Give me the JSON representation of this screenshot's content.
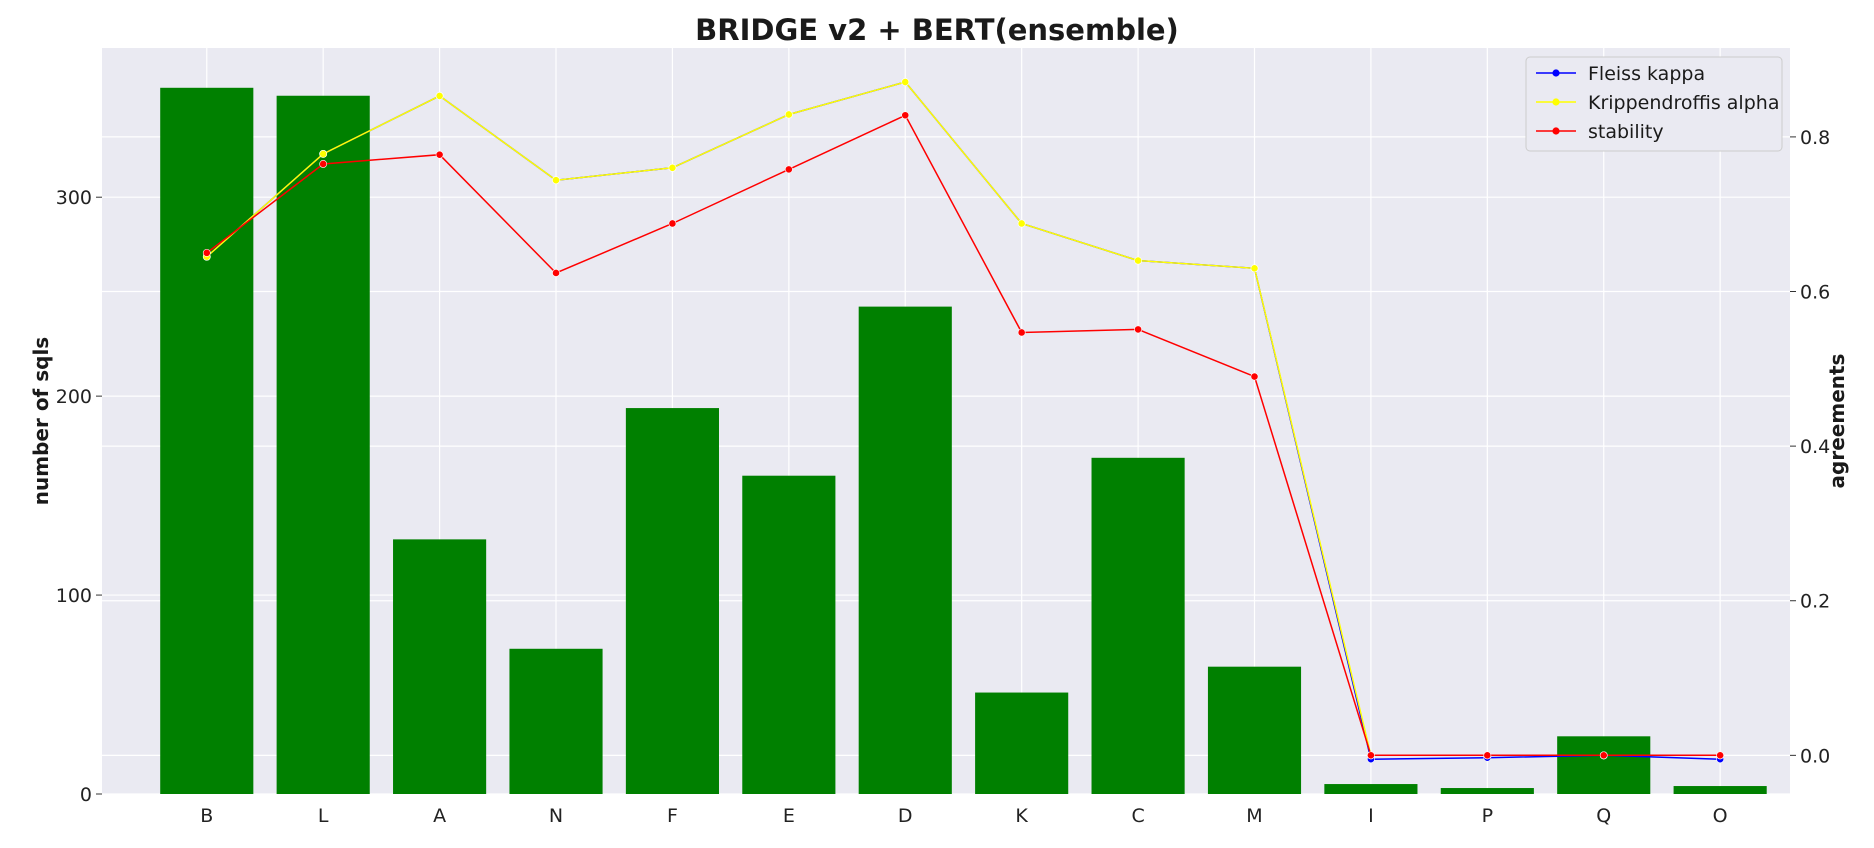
{
  "chart_data": {
    "type": "bar",
    "title": "BRIDGE v2 + BERT(ensemble)",
    "xlabel": "",
    "ylabel": "number of sqls",
    "y2label": "agreements",
    "categories": [
      "B",
      "L",
      "A",
      "N",
      "F",
      "E",
      "D",
      "K",
      "C",
      "M",
      "I",
      "P",
      "Q",
      "O"
    ],
    "ylim": [
      0,
      375
    ],
    "y2lim": [
      -0.05,
      0.915
    ],
    "yticks": [
      0,
      100,
      200,
      300
    ],
    "y2ticks": [
      0.0,
      0.2,
      0.4,
      0.6,
      0.8
    ],
    "grid": true,
    "legend_position": "top-right",
    "bars": {
      "values": [
        355,
        351,
        128,
        73,
        194,
        160,
        245,
        51,
        169,
        64,
        5,
        3,
        29,
        4
      ],
      "color": "#008000"
    },
    "series": [
      {
        "name": "Fleiss kappa",
        "axis": "right",
        "color": "#0000ff",
        "values": [
          0.645,
          0.778,
          0.853,
          0.744,
          0.76,
          0.829,
          0.871,
          0.688,
          0.64,
          0.63,
          -0.005,
          -0.003,
          0.0,
          -0.005
        ]
      },
      {
        "name": "Krippendroffis alpha",
        "axis": "right",
        "color": "#ffff00",
        "values": [
          0.645,
          0.778,
          0.853,
          0.744,
          0.76,
          0.829,
          0.871,
          0.688,
          0.64,
          0.63,
          0.0,
          0.0,
          0.0,
          0.0
        ]
      },
      {
        "name": "stability",
        "axis": "right",
        "color": "#ff0000",
        "values": [
          0.65,
          0.765,
          0.777,
          0.624,
          0.688,
          0.758,
          0.828,
          0.547,
          0.551,
          0.49,
          0.0,
          0.0,
          0.0,
          0.0
        ]
      }
    ]
  }
}
